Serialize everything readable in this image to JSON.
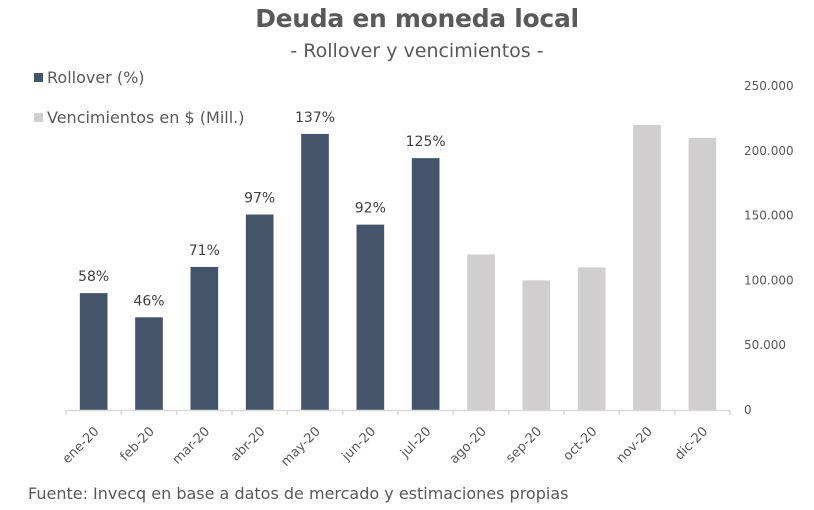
{
  "chart_data": {
    "type": "bar",
    "title": "Deuda en moneda local",
    "subtitle": "- Rollover y vencimientos -",
    "source": "Fuente: Invecq en base a datos de mercado y estimaciones propias",
    "categories": [
      "ene-20",
      "feb-20",
      "mar-20",
      "abr-20",
      "may-20",
      "jun-20",
      "jul-20",
      "ago-20",
      "sep-20",
      "oct-20",
      "nov-20",
      "dic-20"
    ],
    "series": [
      {
        "name": "Rollover (%)",
        "color": "#44546A",
        "axis": "left",
        "values": [
          58,
          46,
          71,
          97,
          137,
          92,
          125,
          null,
          null,
          null,
          null,
          null
        ],
        "labels": [
          "58%",
          "46%",
          "71%",
          "97%",
          "137%",
          "92%",
          "125%",
          "",
          "",
          "",
          "",
          ""
        ]
      },
      {
        "name": "Vencimientos en $ (Mill.)",
        "color": "#D0CECE",
        "axis": "right",
        "values": [
          null,
          null,
          null,
          null,
          null,
          null,
          null,
          120000,
          100000,
          110000,
          220000,
          210000
        ]
      }
    ],
    "left_axis": {
      "visible": false,
      "ylim": [
        0,
        160
      ]
    },
    "right_axis": {
      "ylim": [
        0,
        250000
      ],
      "ticks": [
        0,
        50000,
        100000,
        150000,
        200000,
        250000
      ],
      "tick_labels": [
        "0",
        "50.000",
        "100.000",
        "150.000",
        "200.000",
        "250.000"
      ]
    },
    "grid": false,
    "legend": "top-left"
  }
}
